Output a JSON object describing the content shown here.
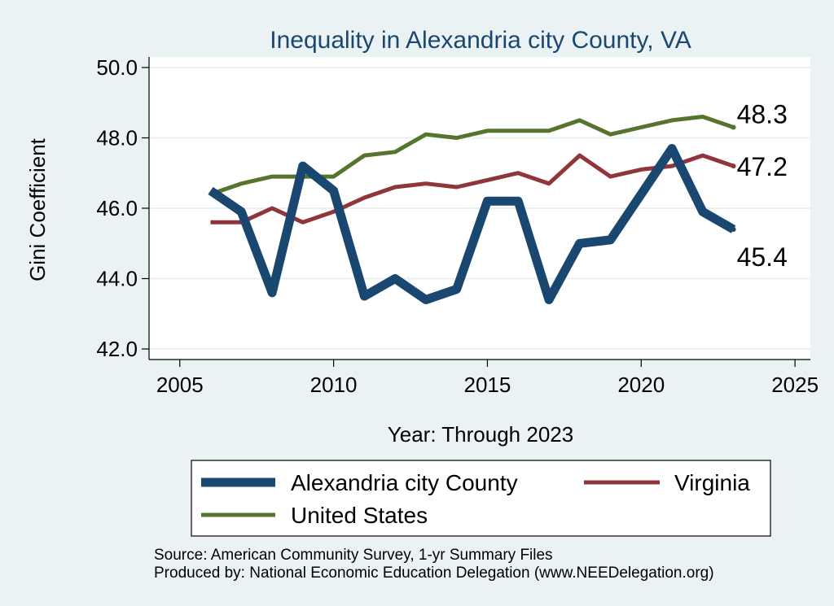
{
  "chart_data": {
    "type": "line",
    "title": "Inequality in Alexandria city County, VA",
    "xlabel": "Year: Through 2023",
    "ylabel": "Gini Coefficient",
    "xlim": [
      2004,
      2025.5
    ],
    "ylim": [
      41.7,
      50.3
    ],
    "xticks": [
      2005,
      2010,
      2015,
      2020,
      2025
    ],
    "yticks": [
      42.0,
      44.0,
      46.0,
      48.0,
      50.0
    ],
    "ytick_labels": [
      "42.0",
      "44.0",
      "46.0",
      "48.0",
      "50.0"
    ],
    "grid": "horizontal",
    "x": [
      2006,
      2007,
      2008,
      2009,
      2010,
      2011,
      2012,
      2013,
      2014,
      2015,
      2016,
      2017,
      2018,
      2019,
      2020,
      2021,
      2022,
      2023
    ],
    "series": [
      {
        "name": "Alexandria city County",
        "color": "#1a476f",
        "width": "thick",
        "values": [
          46.5,
          45.9,
          43.6,
          47.2,
          46.5,
          43.5,
          44.0,
          43.4,
          43.7,
          46.2,
          46.2,
          43.4,
          45.0,
          45.1,
          46.4,
          47.7,
          45.9,
          45.4
        ],
        "end_label": "45.4"
      },
      {
        "name": "Virginia",
        "color": "#90353b",
        "width": "medium",
        "values": [
          45.6,
          45.6,
          46.0,
          45.6,
          45.9,
          46.3,
          46.6,
          46.7,
          46.6,
          46.8,
          47.0,
          46.7,
          47.5,
          46.9,
          47.1,
          47.2,
          47.5,
          47.2
        ],
        "end_label": "47.2"
      },
      {
        "name": "United States",
        "color": "#55752f",
        "width": "medium",
        "values": [
          46.4,
          46.7,
          46.9,
          46.9,
          46.9,
          47.5,
          47.6,
          48.1,
          48.0,
          48.2,
          48.2,
          48.2,
          48.5,
          48.1,
          48.3,
          48.5,
          48.6,
          48.3
        ],
        "end_label": "48.3"
      }
    ],
    "legend": {
      "position": "bottom",
      "columns": 2
    },
    "notes": [
      "Source: American Community Survey, 1-yr Summary Files",
      "Produced by: National Economic Education Delegation (www.NEEDelegation.org)"
    ]
  }
}
